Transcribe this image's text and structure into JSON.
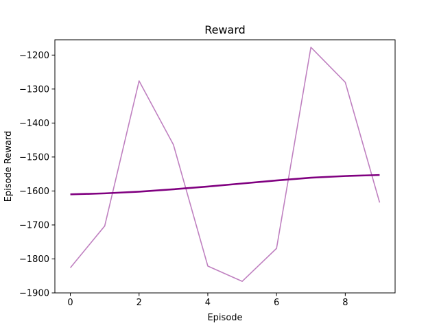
{
  "chart_data": {
    "type": "line",
    "title": "Reward",
    "xlabel": "Episode",
    "ylabel": "Episode Reward",
    "xlim": [
      -0.45,
      9.45
    ],
    "ylim": [
      -1900,
      -1155
    ],
    "xticks": [
      0,
      2,
      4,
      6,
      8
    ],
    "yticks": [
      -1900,
      -1800,
      -1700,
      -1600,
      -1500,
      -1400,
      -1300,
      -1200
    ],
    "grid": false,
    "x": [
      0,
      1,
      2,
      3,
      4,
      5,
      6,
      7,
      8,
      9
    ],
    "series": [
      {
        "values": [
          -1826,
          -1703,
          -1276,
          -1464,
          -1821,
          -1866,
          -1769,
          -1177,
          -1280,
          -1634
        ],
        "color": "#bf80c0",
        "style": "thin"
      },
      {
        "values": [
          -1610,
          -1607,
          -1602,
          -1595,
          -1587,
          -1578,
          -1569,
          -1561,
          -1556,
          -1553
        ],
        "color": "#800080",
        "style": "thick"
      }
    ]
  }
}
